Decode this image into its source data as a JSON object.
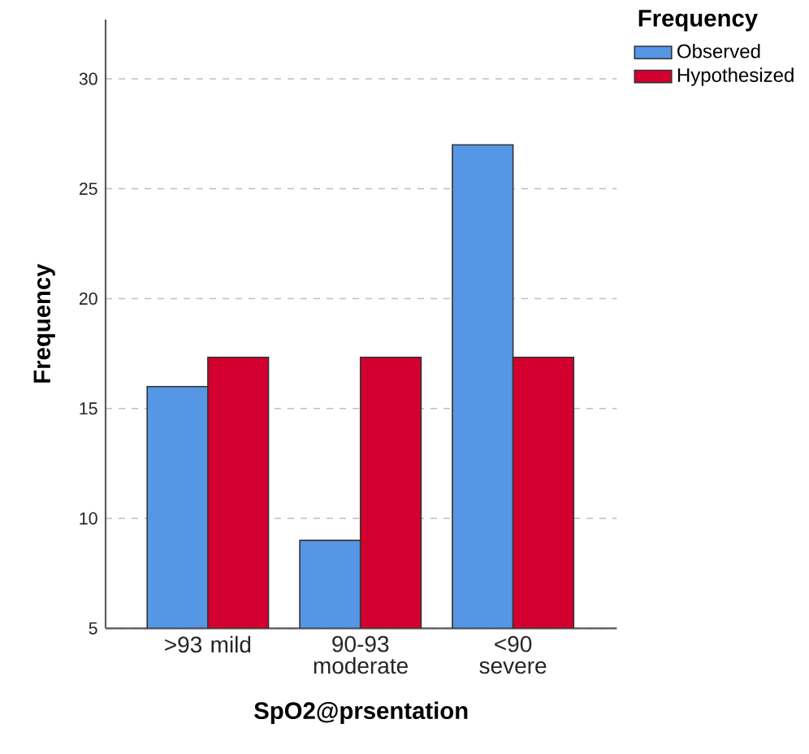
{
  "chart_data": {
    "type": "bar",
    "xlabel": "SpO2@prsentation",
    "ylabel": "Frequency",
    "legend_title": "Frequency",
    "categories": [
      ">93 mild",
      "90-93 moderate",
      "<90 severe"
    ],
    "series": [
      {
        "name": "Observed",
        "color": "#5596e5",
        "values": [
          16,
          9,
          27
        ]
      },
      {
        "name": "Hypothesized",
        "color": "#d3002f",
        "values": [
          17.33,
          17.33,
          17.33
        ]
      }
    ],
    "ylim": [
      5,
      32.7
    ],
    "yticks": [
      5,
      10,
      15,
      20,
      25,
      30
    ],
    "grid": "y",
    "legend": "top right"
  }
}
